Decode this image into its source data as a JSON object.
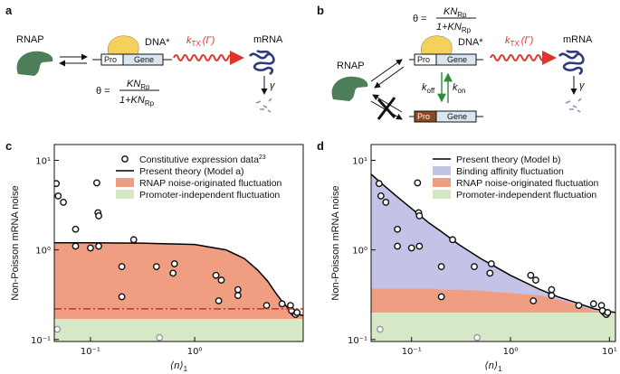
{
  "panel_labels": [
    "a",
    "b",
    "c",
    "d"
  ],
  "diagram_a": {
    "rnap": "RNAP",
    "dna": "DNA*",
    "pro": "Pro",
    "gene": "Gene",
    "rate": {
      "k": "k",
      "sub": "TX",
      "arg": "(Γ)"
    },
    "mrna": "mRNA",
    "decay": "γ",
    "theta": {
      "lhs": "θ =",
      "num": "KN",
      "num_sub": "Rp",
      "den": "1+KN",
      "den_sub": "Rp"
    }
  },
  "diagram_b": {
    "rnap": "RNAP",
    "dna": "DNA*",
    "pro": "Pro",
    "gene": "Gene",
    "free_pro": "Pro",
    "free_gene": "Gene",
    "koff": {
      "k": "k",
      "sub": "off"
    },
    "kon": {
      "k": "k",
      "sub": "on"
    },
    "rate": {
      "k": "k",
      "sub": "TX",
      "arg": "(Γ)"
    },
    "mrna": "mRNA",
    "decay": "γ",
    "theta": {
      "lhs": "θ =",
      "num": "KN",
      "num_sub": "Rp",
      "den": "1+KN",
      "den_sub": "Rp"
    }
  },
  "chart_data": [
    {
      "type": "line",
      "xscale": "log",
      "yscale": "log",
      "xlabel": "⟨n⟩",
      "xlabel_sub": "1",
      "ylabel": "Non-Poisson mRNA noise",
      "xlim": [
        0.045,
        11
      ],
      "ylim": [
        0.095,
        15
      ],
      "xticks": [
        {
          "value": 0.1,
          "label": "10⁻¹"
        },
        {
          "value": 1,
          "label": "10⁰"
        }
      ],
      "yticks": [
        {
          "value": 0.1,
          "label": "10⁻¹"
        },
        {
          "value": 1,
          "label": "10⁰"
        },
        {
          "value": 10,
          "label": "10¹"
        }
      ],
      "reference_line": {
        "value": 0.22,
        "color": "#d62728"
      },
      "series": [
        {
          "type": "scatter",
          "name": "Constitutive expression data",
          "name_sup": "23",
          "color": "#111111",
          "x": [
            0.047,
            0.049,
            0.055,
            0.072,
            0.072,
            0.1,
            0.115,
            0.118,
            0.12,
            0.12,
            0.26,
            0.2,
            0.2,
            0.43,
            0.64,
            0.62,
            1.6,
            1.7,
            1.8,
            2.6,
            2.6,
            4.9,
            6.9,
            8.3,
            8.9,
            8.5,
            9.3,
            9.6
          ],
          "values": [
            5.5,
            4,
            3.4,
            1.7,
            1.1,
            1.05,
            5.6,
            2.6,
            2.4,
            1.1,
            1.3,
            0.65,
            0.3,
            0.65,
            0.7,
            0.55,
            0.52,
            0.27,
            0.46,
            0.36,
            0.31,
            0.24,
            0.25,
            0.24,
            0.2,
            0.21,
            0.19,
            0.2
          ]
        },
        {
          "type": "line",
          "name": "Present theory (Model a)",
          "color": "#000000",
          "x": [
            0.045,
            0.1,
            0.3,
            1,
            2,
            3,
            4,
            5,
            6,
            7,
            8,
            9,
            10,
            11
          ],
          "values": [
            1.2,
            1.2,
            1.19,
            1.15,
            1.0,
            0.8,
            0.6,
            0.45,
            0.33,
            0.26,
            0.22,
            0.2,
            0.19,
            0.185
          ]
        },
        {
          "type": "area",
          "name": "RNAP noise-originated fluctuation",
          "color": "#ef9e82",
          "x": [
            0.045,
            0.1,
            0.3,
            1,
            2,
            3,
            4,
            5,
            6,
            7,
            8,
            9,
            10,
            11
          ],
          "values": [
            1.2,
            1.2,
            1.19,
            1.15,
            1.0,
            0.8,
            0.6,
            0.45,
            0.33,
            0.26,
            0.22,
            0.2,
            0.19,
            0.185
          ]
        },
        {
          "type": "area",
          "name": "Promoter-independent fluctuation",
          "color": "#d6e8c6",
          "x": [
            0.045,
            11
          ],
          "values": [
            0.17,
            0.17
          ]
        },
        {
          "type": "scatter",
          "color": "#999999",
          "x": [
            0.048,
            0.46
          ],
          "values": [
            0.13,
            0.105
          ]
        }
      ]
    },
    {
      "type": "line",
      "xscale": "log",
      "yscale": "log",
      "xlabel": "⟨n⟩",
      "xlabel_sub": "1",
      "ylabel": "Non-Poisson mRNA noise",
      "xlim": [
        0.039,
        11.5
      ],
      "ylim": [
        0.095,
        15
      ],
      "xticks": [
        {
          "value": 0.1,
          "label": "10⁻¹"
        },
        {
          "value": 1,
          "label": "10⁰"
        },
        {
          "value": 10,
          "label": "10¹"
        }
      ],
      "yticks": [
        {
          "value": 0.1,
          "label": "10⁻¹"
        },
        {
          "value": 1,
          "label": "10⁰"
        },
        {
          "value": 10,
          "label": "10¹"
        }
      ],
      "series": [
        {
          "type": "line",
          "name": "Present theory (Model b)",
          "color": "#000000",
          "x": [
            0.039,
            0.05,
            0.07,
            0.1,
            0.15,
            0.2,
            0.3,
            0.5,
            0.7,
            1,
            2,
            3,
            5,
            7,
            10,
            11.5
          ],
          "values": [
            7,
            5.5,
            4,
            2.9,
            2.0,
            1.6,
            1.15,
            0.8,
            0.65,
            0.52,
            0.36,
            0.3,
            0.25,
            0.22,
            0.205,
            0.2
          ]
        },
        {
          "type": "area",
          "name": "Binding affinity fluctuation",
          "color": "#c3c3e8",
          "x": [
            0.039,
            0.05,
            0.07,
            0.1,
            0.15,
            0.2,
            0.3,
            0.5,
            0.7,
            1,
            2,
            3,
            5,
            7,
            10,
            11.5
          ],
          "values": [
            7,
            5.5,
            4,
            2.9,
            2.0,
            1.6,
            1.15,
            0.8,
            0.65,
            0.52,
            0.36,
            0.3,
            0.25,
            0.22,
            0.205,
            0.2
          ]
        },
        {
          "type": "area",
          "name": "RNAP noise-originated fluctuation",
          "color": "#ef9e82",
          "x": [
            0.039,
            0.05,
            0.07,
            0.1,
            0.15,
            0.2,
            0.3,
            0.5,
            0.7,
            1,
            2,
            3,
            5,
            7,
            10,
            11.5
          ],
          "values": [
            0.37,
            0.37,
            0.37,
            0.37,
            0.37,
            0.36,
            0.36,
            0.35,
            0.34,
            0.33,
            0.31,
            0.28,
            0.24,
            0.21,
            0.2,
            0.2
          ]
        },
        {
          "type": "area",
          "name": "Promoter-independent fluctuation",
          "color": "#d6e8c6",
          "x": [
            0.039,
            11.5
          ],
          "values": [
            0.2,
            0.2
          ]
        },
        {
          "type": "scatter",
          "color": "#111111",
          "x": [
            0.047,
            0.049,
            0.055,
            0.072,
            0.072,
            0.1,
            0.115,
            0.118,
            0.12,
            0.12,
            0.26,
            0.2,
            0.2,
            0.43,
            0.64,
            0.62,
            1.6,
            1.7,
            1.8,
            2.6,
            2.6,
            4.9,
            6.9,
            8.3,
            8.9,
            8.5,
            9.3,
            9.6
          ],
          "values": [
            5.5,
            4,
            3.4,
            1.7,
            1.1,
            1.05,
            5.6,
            2.6,
            2.4,
            1.1,
            1.3,
            0.65,
            0.3,
            0.65,
            0.7,
            0.55,
            0.52,
            0.27,
            0.46,
            0.36,
            0.31,
            0.24,
            0.25,
            0.24,
            0.2,
            0.21,
            0.19,
            0.2
          ]
        },
        {
          "type": "scatter",
          "color": "#999999",
          "x": [
            0.048,
            0.46
          ],
          "values": [
            0.13,
            0.105
          ]
        }
      ]
    }
  ]
}
